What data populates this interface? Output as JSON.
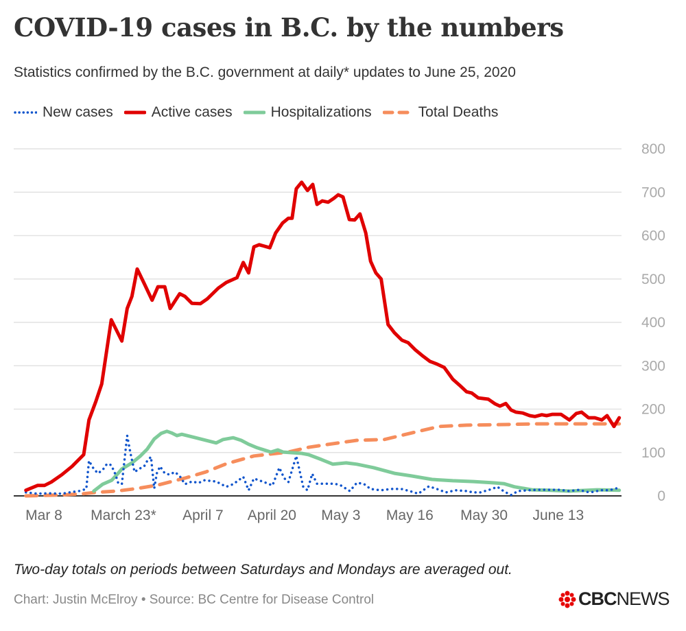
{
  "title": "COVID-19 cases in B.C. by the numbers",
  "subtitle": "Statistics confirmed by the B.C. government at daily* updates to June 25, 2020",
  "footnote": "Two-day totals on periods between Saturdays and Mondays are averaged out.",
  "credit": "Chart: Justin McElroy • Source: BC Centre for Disease Control",
  "logo": {
    "bold": "CBC",
    "light": "NEWS"
  },
  "chart_data": {
    "type": "line",
    "x_unit": "days since March 8, 2020",
    "xlim": [
      -3.4,
      108.5
    ],
    "ylim": [
      0,
      800
    ],
    "grid": true,
    "legend_placement": "top-left",
    "y_ticks": [
      0,
      100,
      200,
      300,
      400,
      500,
      600,
      700,
      800
    ],
    "y_tick_labels": [
      "0",
      "100",
      "200",
      "300",
      "400",
      "500",
      "600",
      "700",
      "800"
    ],
    "x_ticks": [
      0,
      15,
      30,
      43,
      56,
      69,
      83,
      97
    ],
    "x_tick_labels": [
      "Mar 8",
      "March 23*",
      "April 7",
      "April 20",
      "May 3",
      "May 16",
      "May 30",
      "June 13"
    ],
    "series": [
      {
        "name": "New cases",
        "color": "#1155cc",
        "style": "dotted",
        "points": [
          [
            -3.4,
            8
          ],
          [
            -1.2,
            5
          ],
          [
            0.8,
            6
          ],
          [
            3.4,
            5
          ],
          [
            5.3,
            9
          ],
          [
            6.6,
            11
          ],
          [
            8,
            16
          ],
          [
            8.5,
            81
          ],
          [
            9.4,
            62
          ],
          [
            10.2,
            52
          ],
          [
            11.1,
            60
          ],
          [
            11.9,
            74
          ],
          [
            12.7,
            71
          ],
          [
            13.5,
            49
          ],
          [
            14,
            30
          ],
          [
            14.7,
            27
          ],
          [
            15.7,
            139
          ],
          [
            16.3,
            100
          ],
          [
            17.1,
            55
          ],
          [
            17.9,
            62
          ],
          [
            18.9,
            68
          ],
          [
            19.5,
            81
          ],
          [
            20.2,
            90
          ],
          [
            20.8,
            17
          ],
          [
            21.3,
            52
          ],
          [
            21.9,
            68
          ],
          [
            22.8,
            52
          ],
          [
            23.7,
            49
          ],
          [
            24.7,
            55
          ],
          [
            25.6,
            46
          ],
          [
            26.6,
            27
          ],
          [
            27.9,
            33
          ],
          [
            29.2,
            30
          ],
          [
            30.3,
            36
          ],
          [
            32.5,
            33
          ],
          [
            34.4,
            21
          ],
          [
            35.7,
            27
          ],
          [
            37.6,
            44
          ],
          [
            38.6,
            13
          ],
          [
            39.6,
            40
          ],
          [
            41.5,
            32
          ],
          [
            43.1,
            24
          ],
          [
            44.4,
            65
          ],
          [
            45.3,
            41
          ],
          [
            46.1,
            32
          ],
          [
            47.6,
            92
          ],
          [
            48.9,
            21
          ],
          [
            49.7,
            13
          ],
          [
            50.6,
            51
          ],
          [
            51.5,
            28
          ],
          [
            52.5,
            28
          ],
          [
            53.8,
            28
          ],
          [
            54.9,
            28
          ],
          [
            56,
            24
          ],
          [
            57.7,
            11
          ],
          [
            59,
            30
          ],
          [
            60.3,
            28
          ],
          [
            61.6,
            16
          ],
          [
            63.5,
            13
          ],
          [
            65.5,
            16
          ],
          [
            67.4,
            16
          ],
          [
            69,
            11
          ],
          [
            70.6,
            5
          ],
          [
            72.6,
            22
          ],
          [
            74.1,
            16
          ],
          [
            75.8,
            8
          ],
          [
            77.7,
            13
          ],
          [
            79.7,
            11
          ],
          [
            81,
            8
          ],
          [
            82.3,
            8
          ],
          [
            84.5,
            16
          ],
          [
            85.5,
            21
          ],
          [
            86.8,
            10
          ],
          [
            88.1,
            2
          ],
          [
            89.4,
            11
          ],
          [
            91.3,
            13
          ],
          [
            93.3,
            14
          ],
          [
            95.2,
            14
          ],
          [
            97.2,
            14
          ],
          [
            99.1,
            11
          ],
          [
            101,
            14
          ],
          [
            102.3,
            9
          ],
          [
            103.6,
            9
          ],
          [
            104.9,
            13
          ],
          [
            106.6,
            13
          ],
          [
            108.5,
            19
          ]
        ]
      },
      {
        "name": "Active cases",
        "color": "#e00000",
        "style": "solid",
        "points": [
          [
            -3.4,
            13
          ],
          [
            -1.2,
            24
          ],
          [
            0.1,
            24
          ],
          [
            1.4,
            32
          ],
          [
            3.4,
            49
          ],
          [
            5.3,
            68
          ],
          [
            7.5,
            95
          ],
          [
            8.5,
            175
          ],
          [
            9.8,
            218
          ],
          [
            10.9,
            258
          ],
          [
            12.7,
            406
          ],
          [
            14.7,
            357
          ],
          [
            15.7,
            432
          ],
          [
            16.6,
            460
          ],
          [
            17.6,
            523
          ],
          [
            18.9,
            490
          ],
          [
            20.4,
            451
          ],
          [
            21.5,
            482
          ],
          [
            22.8,
            482
          ],
          [
            23.8,
            432
          ],
          [
            25.6,
            466
          ],
          [
            26.6,
            460
          ],
          [
            27.9,
            444
          ],
          [
            29.5,
            443
          ],
          [
            30.8,
            454
          ],
          [
            32.9,
            479
          ],
          [
            34.4,
            492
          ],
          [
            36.4,
            503
          ],
          [
            37.6,
            538
          ],
          [
            38.6,
            514
          ],
          [
            39.6,
            574
          ],
          [
            40.6,
            579
          ],
          [
            42.6,
            572
          ],
          [
            43.7,
            606
          ],
          [
            45,
            629
          ],
          [
            46.1,
            640
          ],
          [
            46.8,
            640
          ],
          [
            47.6,
            708
          ],
          [
            48.6,
            723
          ],
          [
            49.7,
            704
          ],
          [
            50.7,
            718
          ],
          [
            51.5,
            672
          ],
          [
            52.5,
            680
          ],
          [
            53.6,
            677
          ],
          [
            54.7,
            686
          ],
          [
            55.5,
            694
          ],
          [
            56.4,
            689
          ],
          [
            57.6,
            637
          ],
          [
            58.6,
            636
          ],
          [
            59.6,
            650
          ],
          [
            60.7,
            606
          ],
          [
            61.6,
            541
          ],
          [
            62.6,
            514
          ],
          [
            63.6,
            500
          ],
          [
            64.9,
            395
          ],
          [
            66.1,
            376
          ],
          [
            67.5,
            359
          ],
          [
            68.7,
            353
          ],
          [
            70,
            337
          ],
          [
            71.3,
            324
          ],
          [
            72.8,
            310
          ],
          [
            74.1,
            304
          ],
          [
            75.5,
            296
          ],
          [
            77.1,
            269
          ],
          [
            78.4,
            255
          ],
          [
            79.7,
            240
          ],
          [
            80.7,
            237
          ],
          [
            81.9,
            226
          ],
          [
            83.8,
            223
          ],
          [
            85.1,
            212
          ],
          [
            86,
            207
          ],
          [
            87.1,
            213
          ],
          [
            88.1,
            198
          ],
          [
            89,
            193
          ],
          [
            90.3,
            191
          ],
          [
            91.6,
            185
          ],
          [
            92.6,
            183
          ],
          [
            93.9,
            187
          ],
          [
            94.8,
            185
          ],
          [
            95.9,
            188
          ],
          [
            97.5,
            188
          ],
          [
            99.1,
            175
          ],
          [
            100.4,
            190
          ],
          [
            101.4,
            193
          ],
          [
            102.7,
            180
          ],
          [
            103.9,
            180
          ],
          [
            105.2,
            175
          ],
          [
            106.2,
            185
          ],
          [
            107.5,
            160
          ],
          [
            108.5,
            180
          ]
        ]
      },
      {
        "name": "Hospitalizations",
        "color": "#7fcb9a",
        "style": "solid",
        "points": [
          [
            9.4,
            11
          ],
          [
            11.1,
            27
          ],
          [
            12.8,
            36
          ],
          [
            14,
            52
          ],
          [
            14.7,
            62
          ],
          [
            16.6,
            76
          ],
          [
            18.2,
            92
          ],
          [
            19.5,
            108
          ],
          [
            20.8,
            131
          ],
          [
            22.1,
            144
          ],
          [
            23.2,
            149
          ],
          [
            24.1,
            145
          ],
          [
            25.1,
            139
          ],
          [
            26,
            142
          ],
          [
            28.6,
            134
          ],
          [
            32.5,
            122
          ],
          [
            33.8,
            130
          ],
          [
            35.7,
            134
          ],
          [
            37.2,
            128
          ],
          [
            38.6,
            119
          ],
          [
            40.2,
            111
          ],
          [
            42.8,
            101
          ],
          [
            44.1,
            106
          ],
          [
            45.1,
            101
          ],
          [
            48.6,
            98
          ],
          [
            49.9,
            95
          ],
          [
            52.3,
            84
          ],
          [
            54.5,
            73
          ],
          [
            57,
            76
          ],
          [
            59,
            73
          ],
          [
            62.2,
            65
          ],
          [
            66.1,
            52
          ],
          [
            69.3,
            46
          ],
          [
            73.2,
            38
          ],
          [
            77.1,
            35
          ],
          [
            81,
            33
          ],
          [
            84.9,
            30
          ],
          [
            86.8,
            28
          ],
          [
            88.7,
            21
          ],
          [
            92,
            14
          ],
          [
            95.2,
            13
          ],
          [
            99.1,
            11
          ],
          [
            104.3,
            14
          ],
          [
            108.5,
            13
          ]
        ]
      },
      {
        "name": "Total Deaths",
        "color": "#f68d5c",
        "style": "dashed",
        "points": [
          [
            -3.4,
            0
          ],
          [
            3.4,
            2
          ],
          [
            7.5,
            5
          ],
          [
            9.8,
            8
          ],
          [
            13.7,
            11
          ],
          [
            17.6,
            17
          ],
          [
            21.5,
            25
          ],
          [
            26.6,
            41
          ],
          [
            30.5,
            55
          ],
          [
            34.4,
            74
          ],
          [
            39.6,
            92
          ],
          [
            46.1,
            101
          ],
          [
            49.9,
            112
          ],
          [
            53.8,
            119
          ],
          [
            59,
            128
          ],
          [
            64.2,
            130
          ],
          [
            69.3,
            145
          ],
          [
            74.5,
            160
          ],
          [
            79.7,
            163
          ],
          [
            84.9,
            164
          ],
          [
            92.6,
            166
          ],
          [
            103,
            166
          ],
          [
            108.5,
            166
          ]
        ]
      }
    ]
  }
}
